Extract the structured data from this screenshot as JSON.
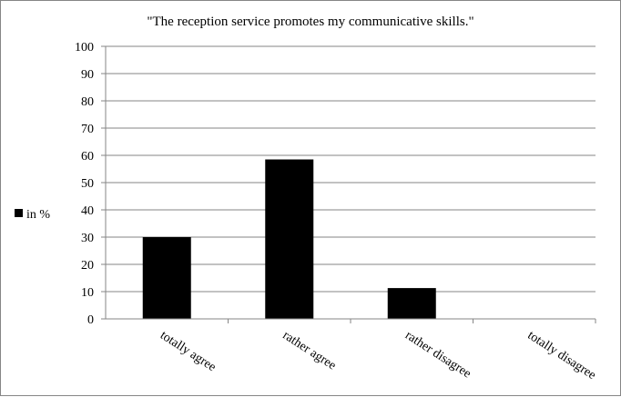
{
  "chart_data": {
    "type": "bar",
    "title": "\"The reception service promotes my communicative skills.\"",
    "xlabel": "",
    "ylabel": "",
    "categories": [
      "totally agree",
      "rather agree",
      "rather disagree",
      "totally disagree"
    ],
    "series": [
      {
        "name": "in %",
        "values": [
          30,
          58.5,
          11.3,
          0
        ],
        "color": "#000000"
      }
    ],
    "ylim": [
      0,
      100
    ],
    "yticks": [
      0,
      10,
      20,
      30,
      40,
      50,
      60,
      70,
      80,
      90,
      100
    ],
    "grid": true,
    "legend": "left"
  }
}
